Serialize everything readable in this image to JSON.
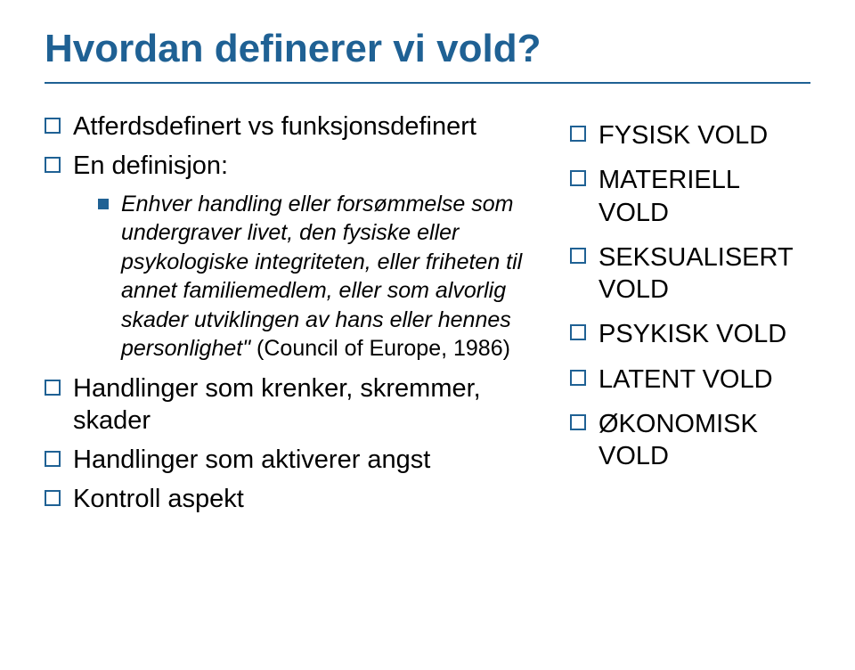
{
  "title": "Hvordan definerer vi vold?",
  "left": {
    "b1": "Atferdsdefinert vs funksjonsdefinert",
    "b2": "En definisjon:",
    "sub_italic": "Enhver handling eller forsømmelse som undergraver livet, den fysiske eller psykologiske integriteten, eller friheten til annet familiemedlem, eller som alvorlig skader utviklingen av hans eller hennes personlighet\"",
    "sub_roman": " (Council of Europe, 1986)",
    "b3": "Handlinger som krenker, skremmer, skader",
    "b4": "Handlinger som aktiverer angst",
    "b5": "Kontroll aspekt"
  },
  "right": {
    "r1": "FYSISK VOLD",
    "r2": "MATERIELL VOLD",
    "r3": "SEKSUALISERT VOLD",
    "r4": "PSYKISK VOLD",
    "r5": "LATENT VOLD",
    "r6": "ØKONOMISK VOLD"
  },
  "colors": {
    "accent": "#1f6194",
    "text": "#000000",
    "bg": "#ffffff"
  }
}
